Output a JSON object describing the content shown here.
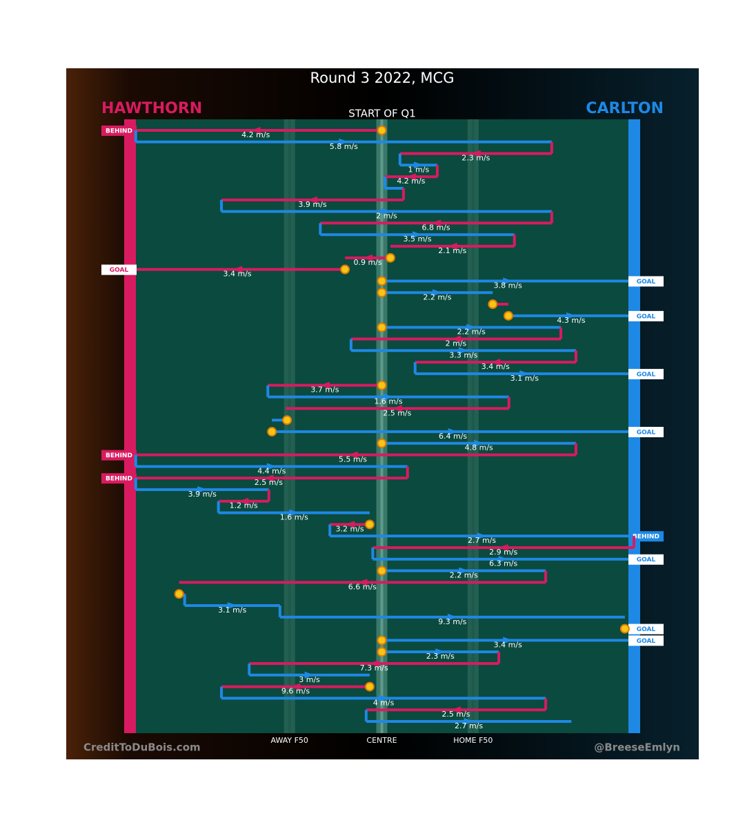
{
  "chart_data": {
    "type": "chain",
    "title": "Round 3 2022, MCG",
    "subtitle": "START OF Q1",
    "teams": [
      {
        "name": "HAWTHORN",
        "color": "#d81b60"
      },
      {
        "name": "CARLTON",
        "color": "#1e88e5"
      }
    ],
    "xlim": [
      0,
      100
    ],
    "xticks": [
      {
        "value": 31.7,
        "label": "AWAY F50"
      },
      {
        "value": 50,
        "label": "CENTRE"
      },
      {
        "value": 68.1,
        "label": "HOME F50"
      }
    ],
    "credits": [
      "CreditToDuBois.com",
      "@BreeseEmlyn"
    ],
    "rows": [
      {
        "team": 0,
        "from": 50,
        "to": 0,
        "speed_label": "4.2 m/s",
        "outcome": "BEHIND",
        "stoppage": true
      },
      {
        "team": 1,
        "from": 1.2,
        "to": 83.7,
        "speed_label": "5.8 m/s"
      },
      {
        "team": 0,
        "from": 83.7,
        "to": 53.6,
        "speed_label": "2.3 m/s"
      },
      {
        "team": 1,
        "from": 53.6,
        "to": 61.0,
        "speed_label": "1 m/s"
      },
      {
        "team": 0,
        "from": 61.0,
        "to": 50.6,
        "speed_label": "4.2 m/s"
      },
      {
        "team": 1,
        "from": 50.6,
        "to": 54.3,
        "speed_label": null
      },
      {
        "team": 0,
        "from": 54.3,
        "to": 18.2,
        "speed_label": "3.9 m/s"
      },
      {
        "team": 1,
        "from": 18.2,
        "to": 83.7,
        "speed_label": "2 m/s"
      },
      {
        "team": 0,
        "from": 83.7,
        "to": 37.8,
        "speed_label": "6.8 m/s"
      },
      {
        "team": 1,
        "from": 37.8,
        "to": 76.3,
        "speed_label": "3.5 m/s"
      },
      {
        "team": 0,
        "from": 76.3,
        "to": 51.7,
        "speed_label": "2.1 m/s"
      },
      {
        "team": 0,
        "from": 51.7,
        "to": 42.7,
        "speed_label": "0.9 m/s",
        "stoppage": true
      },
      {
        "team": 0,
        "from": 42.7,
        "to": 0,
        "speed_label": "3.4 m/s",
        "outcome": "GOAL",
        "stoppage": true
      },
      {
        "team": 1,
        "from": 50,
        "to": 100,
        "speed_label": "3.8 m/s",
        "outcome": "GOAL",
        "stoppage": true
      },
      {
        "team": 1,
        "from": 50,
        "to": 72.0,
        "speed_label": "2.2 m/s",
        "stoppage": true
      },
      {
        "team": 0,
        "from": 72.0,
        "to": 75.1,
        "speed_label": null,
        "stoppage": true
      },
      {
        "team": 1,
        "from": 75.1,
        "to": 100,
        "speed_label": "4.3 m/s",
        "outcome": "GOAL",
        "stoppage": true
      },
      {
        "team": 1,
        "from": 50,
        "to": 85.5,
        "speed_label": "2.2 m/s",
        "stoppage": true
      },
      {
        "team": 0,
        "from": 85.5,
        "to": 43.9,
        "speed_label": "2 m/s"
      },
      {
        "team": 1,
        "from": 43.9,
        "to": 88.5,
        "speed_label": "3.3 m/s"
      },
      {
        "team": 0,
        "from": 88.5,
        "to": 56.6,
        "speed_label": "3.4 m/s"
      },
      {
        "team": 1,
        "from": 56.6,
        "to": 100,
        "speed_label": "3.1 m/s",
        "outcome": "GOAL"
      },
      {
        "team": 0,
        "from": 50,
        "to": 27.4,
        "speed_label": "3.7 m/s",
        "stoppage": true
      },
      {
        "team": 1,
        "from": 27.4,
        "to": 75.2,
        "speed_label": "1.6 m/s"
      },
      {
        "team": 0,
        "from": 75.2,
        "to": 30.9,
        "speed_label": "2.5 m/s"
      },
      {
        "team": 1,
        "from": 31.2,
        "to": 28.2,
        "speed_label": null,
        "stoppage": true
      },
      {
        "team": 1,
        "from": 28.2,
        "to": 100,
        "speed_label": "6.4 m/s",
        "outcome": "GOAL",
        "stoppage": true
      },
      {
        "team": 1,
        "from": 50,
        "to": 88.5,
        "speed_label": "4.8 m/s",
        "stoppage": true
      },
      {
        "team": 0,
        "from": 88.5,
        "to": 0,
        "speed_label": "5.5 m/s",
        "outcome": "BEHIND"
      },
      {
        "team": 1,
        "from": 1.2,
        "to": 55.1,
        "speed_label": "4.4 m/s"
      },
      {
        "team": 0,
        "from": 55.1,
        "to": 0,
        "speed_label": "2.5 m/s",
        "outcome": "BEHIND"
      },
      {
        "team": 1,
        "from": 1.2,
        "to": 27.6,
        "speed_label": "3.9 m/s"
      },
      {
        "team": 0,
        "from": 27.6,
        "to": 17.6,
        "speed_label": "1.2 m/s"
      },
      {
        "team": 1,
        "from": 17.6,
        "to": 47.6,
        "speed_label": "1.6 m/s"
      },
      {
        "team": 0,
        "from": 47.6,
        "to": 39.7,
        "speed_label": "3.2 m/s",
        "stoppage": true
      },
      {
        "team": 1,
        "from": 39.7,
        "to": 100,
        "speed_label": "2.7 m/s",
        "outcome": "BEHIND"
      },
      {
        "team": 0,
        "from": 100,
        "to": 48.2,
        "speed_label": "2.9 m/s"
      },
      {
        "team": 1,
        "from": 48.2,
        "to": 100,
        "speed_label": "6.3 m/s",
        "outcome": "GOAL"
      },
      {
        "team": 1,
        "from": 50,
        "to": 82.5,
        "speed_label": "2.2 m/s",
        "stoppage": true
      },
      {
        "team": 0,
        "from": 82.5,
        "to": 9.8,
        "speed_label": "6.6 m/s"
      },
      {
        "team": 0,
        "from": 9.8,
        "to": 10.9,
        "speed_label": null,
        "stoppage": true
      },
      {
        "team": 1,
        "from": 10.9,
        "to": 29.8,
        "speed_label": "3.1 m/s"
      },
      {
        "team": 1,
        "from": 29.8,
        "to": 98.2,
        "speed_label": "9.3 m/s"
      },
      {
        "team": 1,
        "from": 98.2,
        "to": 100,
        "speed_label": null,
        "outcome": "GOAL",
        "stoppage": true
      },
      {
        "team": 1,
        "from": 50,
        "to": 100,
        "speed_label": "3.4 m/s",
        "outcome": "GOAL",
        "stoppage": true
      },
      {
        "team": 1,
        "from": 50,
        "to": 73.2,
        "speed_label": "2.3 m/s",
        "stoppage": true
      },
      {
        "team": 0,
        "from": 73.2,
        "to": 23.7,
        "speed_label": "7.3 m/s"
      },
      {
        "team": 1,
        "from": 23.7,
        "to": 47.6,
        "speed_label": "3 m/s"
      },
      {
        "team": 0,
        "from": 47.6,
        "to": 18.2,
        "speed_label": "9.6 m/s",
        "stoppage": true
      },
      {
        "team": 1,
        "from": 18.2,
        "to": 82.5,
        "speed_label": "4 m/s"
      },
      {
        "team": 0,
        "from": 82.5,
        "to": 46.9,
        "speed_label": "2.5 m/s"
      },
      {
        "team": 1,
        "from": 46.9,
        "to": 87.6,
        "speed_label": "2.7 m/s"
      }
    ]
  }
}
